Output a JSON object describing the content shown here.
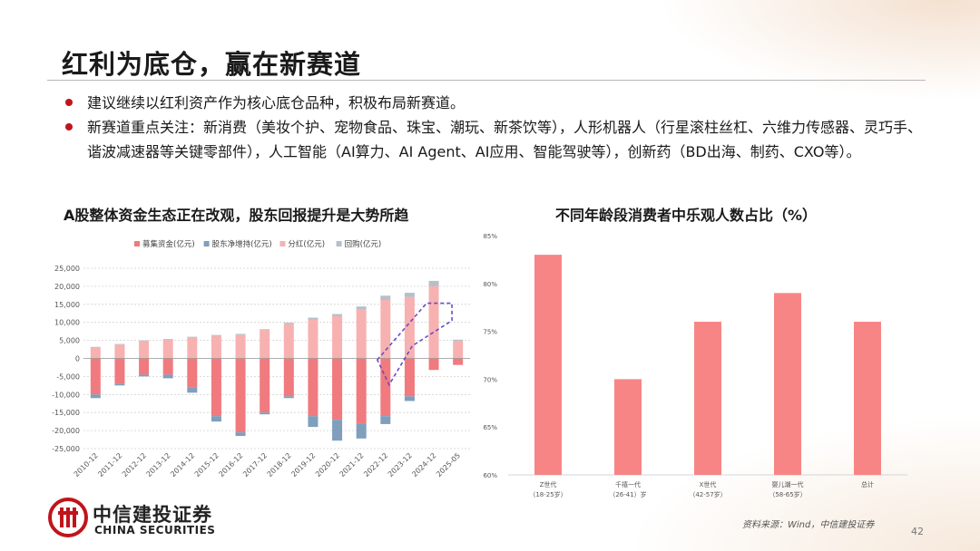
{
  "slide": {
    "title": "红利为底仓，赢在新赛道",
    "bullets": [
      "建议继续以红利资产作为核心底仓品种，积极布局新赛道。",
      "新赛道重点关注：新消费（美妆个护、宠物食品、珠宝、潮玩、新茶饮等），人形机器人（行星滚柱丝杠、六维力传感器、灵巧手、谐波减速器等关键零部件），人工智能（AI算力、AI Agent、AI应用、智能驾驶等），创新药（BD出海、制药、CXO等）。"
    ],
    "source": "资料来源：Wind，中信建投证券",
    "page_number": "42",
    "logo_cn": "中信建投证券",
    "logo_en": "CHINA SECURITIES",
    "accent_color": "#c0141c"
  },
  "chart_data": [
    {
      "type": "bar",
      "stacked": true,
      "title": "A股整体资金生态正在改观，股东回报提升是大势所趋",
      "categories": [
        "2010-12",
        "2011-12",
        "2012-12",
        "2013-12",
        "2014-12",
        "2015-12",
        "2016-12",
        "2017-12",
        "2018-12",
        "2019-12",
        "2020-12",
        "2021-12",
        "2022-12",
        "2023-12",
        "2024-12",
        "2025-05"
      ],
      "series": [
        {
          "name": "募集资金(亿元)",
          "color": "#f07a7e",
          "values": [
            -10000,
            -7000,
            -4500,
            -4500,
            -8000,
            -16000,
            -20500,
            -15000,
            -10500,
            -16000,
            -17000,
            -18000,
            -16000,
            -10500,
            -3200,
            -1800
          ]
        },
        {
          "name": "股东净增持(亿元)",
          "color": "#7f9fbd",
          "values": [
            -1000,
            -500,
            -500,
            -1000,
            -1500,
            -1500,
            -1000,
            -500,
            -500,
            -3000,
            -5800,
            -4200,
            -2200,
            -1300,
            0,
            0
          ]
        },
        {
          "name": "分红(亿元)",
          "color": "#f7b1b1",
          "values": [
            3000,
            3800,
            4800,
            5200,
            5800,
            6200,
            6500,
            7900,
            9500,
            10700,
            11700,
            13500,
            16200,
            17000,
            20000,
            4800
          ]
        },
        {
          "name": "回购(亿元)",
          "color": "#b7bfc9",
          "values": [
            200,
            200,
            200,
            200,
            200,
            300,
            300,
            200,
            400,
            600,
            600,
            900,
            1200,
            1200,
            1500,
            400
          ]
        }
      ],
      "ylim": [
        -25000,
        25000
      ],
      "yticks": [
        "25,000",
        "20,000",
        "15,000",
        "10,000",
        "5,000",
        "0",
        "-5,000",
        "-10,000",
        "-15,000",
        "-20,000",
        "-25,000"
      ],
      "grid": true,
      "legend": "top"
    },
    {
      "type": "bar",
      "title": "不同年龄段消费者中乐观人数占比（%）",
      "categories": [
        {
          "line1": "Z世代",
          "line2": "（18-25岁）"
        },
        {
          "line1": "千禧一代",
          "line2": "（26-41）岁"
        },
        {
          "line1": "X世代",
          "line2": "（42-57岁）"
        },
        {
          "line1": "婴儿潮一代",
          "line2": "（58-65岁）"
        },
        {
          "line1": "总计",
          "line2": ""
        }
      ],
      "values": [
        83,
        70,
        76,
        79,
        76
      ],
      "color": "#f78585",
      "ylim": [
        60,
        85
      ],
      "yticks": [
        "85%",
        "80%",
        "75%",
        "70%",
        "65%",
        "60%"
      ],
      "grid": false
    }
  ]
}
